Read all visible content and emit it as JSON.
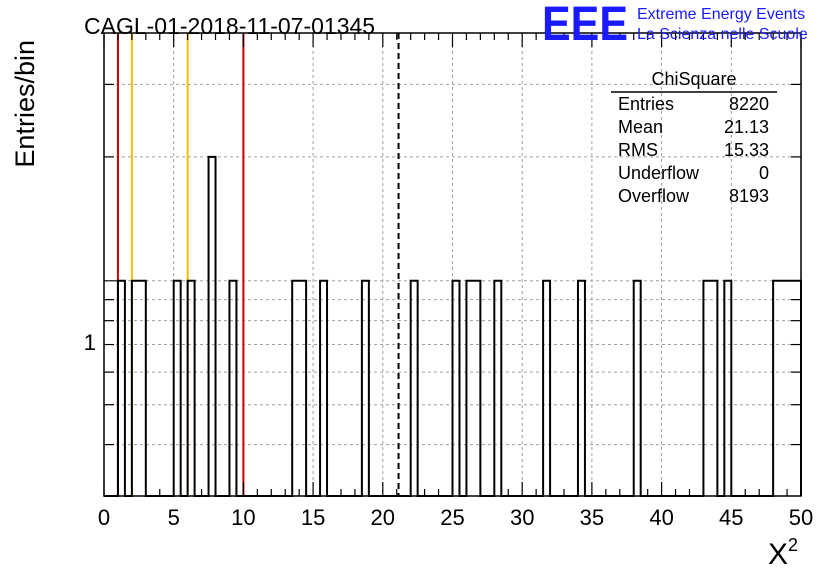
{
  "chart_data": {
    "type": "bar",
    "title": "CAGL-01-2018-11-07-01345",
    "xlabel": "X",
    "xlabel_superscript": "2",
    "ylabel": "Entries/bin",
    "xlim": [
      0,
      50
    ],
    "ylim": [
      0.3,
      4
    ],
    "y_scale": "log",
    "grid": true,
    "x_ticks": [
      0,
      5,
      10,
      15,
      20,
      25,
      30,
      35,
      40,
      45,
      50
    ],
    "y_tick_labels": [
      {
        "value": 1,
        "label": "1"
      }
    ],
    "bin_width": 0.5,
    "bins": [
      {
        "x": 1.0,
        "value": 1
      },
      {
        "x": 2.0,
        "value": 1
      },
      {
        "x": 2.5,
        "value": 1
      },
      {
        "x": 5.0,
        "value": 1
      },
      {
        "x": 6.0,
        "value": 1
      },
      {
        "x": 7.5,
        "value": 2
      },
      {
        "x": 9.0,
        "value": 1
      },
      {
        "x": 13.5,
        "value": 1
      },
      {
        "x": 14.0,
        "value": 1
      },
      {
        "x": 15.5,
        "value": 1
      },
      {
        "x": 18.5,
        "value": 1
      },
      {
        "x": 22.0,
        "value": 1
      },
      {
        "x": 25.0,
        "value": 1
      },
      {
        "x": 26.0,
        "value": 1
      },
      {
        "x": 26.5,
        "value": 1
      },
      {
        "x": 28.0,
        "value": 1
      },
      {
        "x": 31.5,
        "value": 1
      },
      {
        "x": 34.0,
        "value": 1
      },
      {
        "x": 38.0,
        "value": 1
      },
      {
        "x": 43.0,
        "value": 1
      },
      {
        "x": 43.5,
        "value": 1
      },
      {
        "x": 44.5,
        "value": 1
      },
      {
        "x": 48.0,
        "value": 1
      },
      {
        "x": 48.5,
        "value": 1
      },
      {
        "x": 49.0,
        "value": 1
      },
      {
        "x": 49.5,
        "value": 1
      }
    ],
    "vertical_lines": [
      {
        "x": 1,
        "color": "#cc0000",
        "style": "solid"
      },
      {
        "x": 2,
        "color": "#f5c000",
        "style": "solid"
      },
      {
        "x": 6,
        "color": "#f5c000",
        "style": "solid"
      },
      {
        "x": 10,
        "color": "#cc0000",
        "style": "solid"
      },
      {
        "x": 21.13,
        "color": "#000000",
        "style": "dashed"
      }
    ],
    "stats_box": {
      "title": "ChiSquare",
      "rows": [
        {
          "label": "Entries",
          "value": "8220"
        },
        {
          "label": "Mean",
          "value": "21.13"
        },
        {
          "label": "RMS",
          "value": "15.33"
        },
        {
          "label": "Underflow",
          "value": "0"
        },
        {
          "label": "Overflow",
          "value": "8193"
        }
      ]
    }
  },
  "logo": {
    "mark": "EEE",
    "line1": "Extreme Energy Events",
    "line2": "La Scienza nelle Scuole",
    "color": "#1a1aff"
  }
}
